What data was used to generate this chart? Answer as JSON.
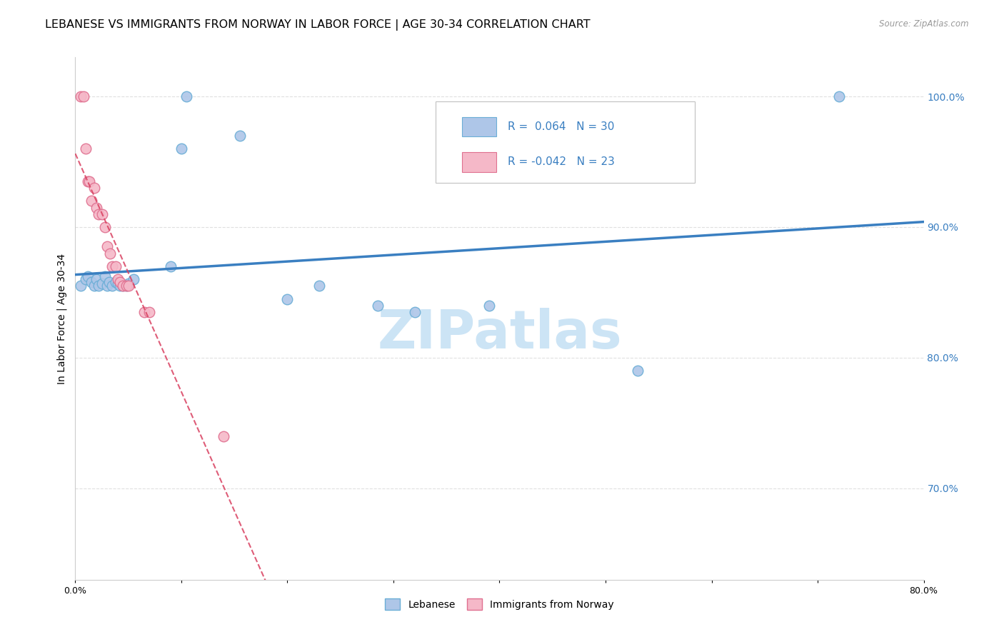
{
  "title": "LEBANESE VS IMMIGRANTS FROM NORWAY IN LABOR FORCE | AGE 30-34 CORRELATION CHART",
  "source": "Source: ZipAtlas.com",
  "ylabel": "In Labor Force | Age 30-34",
  "xlim": [
    0.0,
    0.8
  ],
  "ylim": [
    0.63,
    1.03
  ],
  "xticks": [
    0.0,
    0.1,
    0.2,
    0.3,
    0.4,
    0.5,
    0.6,
    0.7,
    0.8
  ],
  "xticklabels": [
    "0.0%",
    "",
    "",
    "",
    "",
    "",
    "",
    "",
    "80.0%"
  ],
  "yticks_right": [
    0.7,
    0.8,
    0.9,
    1.0
  ],
  "ytick_labels_right": [
    "70.0%",
    "80.0%",
    "90.0%",
    "100.0%"
  ],
  "blue_R": 0.064,
  "blue_N": 30,
  "pink_R": -0.042,
  "pink_N": 23,
  "blue_color": "#aec6e8",
  "pink_color": "#f5b8c8",
  "blue_edge": "#6baed6",
  "pink_edge": "#e07090",
  "trend_blue": "#3a7fc1",
  "trend_pink": "#d94060",
  "watermark_color": "#cce4f5",
  "legend_label_blue": "Lebanese",
  "legend_label_pink": "Immigrants from Norway",
  "blue_scatter_x": [
    0.005,
    0.01,
    0.012,
    0.015,
    0.018,
    0.02,
    0.022,
    0.025,
    0.028,
    0.03,
    0.032,
    0.035,
    0.038,
    0.04,
    0.042,
    0.045,
    0.048,
    0.05,
    0.055,
    0.09,
    0.1,
    0.105,
    0.155,
    0.2,
    0.23,
    0.285,
    0.32,
    0.39,
    0.53,
    0.72
  ],
  "blue_scatter_y": [
    0.855,
    0.86,
    0.862,
    0.858,
    0.855,
    0.86,
    0.855,
    0.857,
    0.862,
    0.855,
    0.858,
    0.855,
    0.858,
    0.857,
    0.855,
    0.855,
    0.855,
    0.857,
    0.86,
    0.87,
    0.96,
    1.0,
    0.97,
    0.845,
    0.855,
    0.84,
    0.835,
    0.84,
    0.79,
    1.0
  ],
  "pink_scatter_x": [
    0.005,
    0.008,
    0.01,
    0.012,
    0.013,
    0.015,
    0.018,
    0.02,
    0.022,
    0.025,
    0.028,
    0.03,
    0.033,
    0.035,
    0.038,
    0.04,
    0.042,
    0.045,
    0.048,
    0.05,
    0.065,
    0.07,
    0.14
  ],
  "pink_scatter_y": [
    1.0,
    1.0,
    0.96,
    0.935,
    0.935,
    0.92,
    0.93,
    0.915,
    0.91,
    0.91,
    0.9,
    0.885,
    0.88,
    0.87,
    0.87,
    0.86,
    0.858,
    0.855,
    0.855,
    0.855,
    0.835,
    0.835,
    0.74
  ],
  "grid_color": "#e0e0e0",
  "bg_color": "#ffffff",
  "title_fontsize": 11.5,
  "axis_label_fontsize": 10,
  "tick_fontsize": 9,
  "right_tick_color": "#3a7fc1"
}
